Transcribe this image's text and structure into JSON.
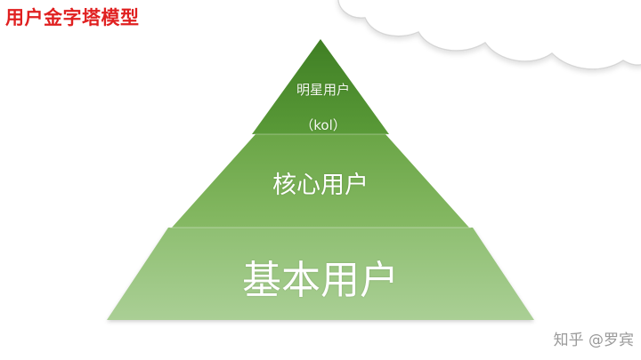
{
  "title": "用户金字塔模型",
  "pyramid": {
    "top": {
      "line1": "明星用户",
      "line2": "（kol）"
    },
    "middle": {
      "label": "核心用户"
    },
    "base": {
      "label": "基本用户"
    }
  },
  "watermark": "知乎 @罗宾",
  "colors": {
    "title": "#e02020",
    "tier_top": "#4e8e2e",
    "tier_middle": "#76ad52",
    "tier_base": "#9cc784",
    "cloud_outline": "#d6d6d6"
  }
}
